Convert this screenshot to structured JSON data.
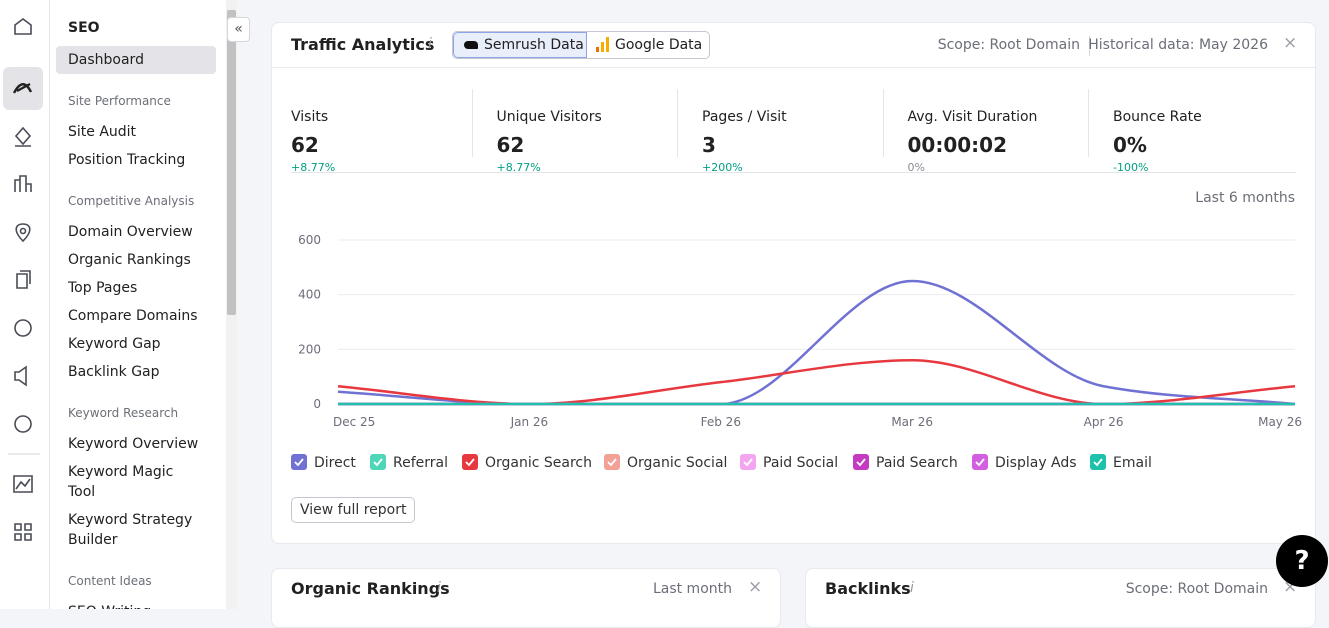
{
  "sidebar": {
    "title": "SEO",
    "top_item": "Dashboard",
    "sections": [
      {
        "heading": "Site Performance",
        "items": [
          "Site Audit",
          "Position Tracking"
        ]
      },
      {
        "heading": "Competitive Analysis",
        "items": [
          "Domain Overview",
          "Organic Rankings",
          "Top Pages",
          "Compare Domains",
          "Keyword Gap",
          "Backlink Gap"
        ]
      },
      {
        "heading": "Keyword Research",
        "items": [
          "Keyword Overview",
          "Keyword Magic Tool",
          "Keyword Strategy Builder"
        ]
      },
      {
        "heading": "Content Ideas",
        "items": [
          "SEO Writing Assistant"
        ]
      }
    ]
  },
  "traffic_card": {
    "title": "Traffic Analytics",
    "tabs": [
      "Semrush Data",
      "Google Data"
    ],
    "scope": "Scope: Root Domain",
    "historical": "Historical data: May 2026",
    "metrics": [
      {
        "label": "Visits",
        "value": "62",
        "change": "+8.77%"
      },
      {
        "label": "Unique Visitors",
        "value": "62",
        "change": "+8.77%"
      },
      {
        "label": "Pages / Visit",
        "value": "3",
        "change": "+200%"
      },
      {
        "label": "Avg. Visit Duration",
        "value": "00:00:02",
        "change": "0%"
      },
      {
        "label": "Bounce Rate",
        "value": "0%",
        "change": "-100%"
      }
    ],
    "period": "Last 6 months",
    "button": "View full report"
  },
  "chart_data": {
    "type": "line",
    "categories": [
      "Dec 25",
      "Jan 26",
      "Feb 26",
      "Mar 26",
      "Apr 26",
      "May 26"
    ],
    "ylim": [
      0,
      600
    ],
    "yticks": [
      0,
      200,
      400,
      600
    ],
    "grid": true,
    "series": [
      {
        "name": "Direct",
        "color": "#7072d3",
        "values": [
          45,
          0,
          0,
          450,
          65,
          0
        ]
      },
      {
        "name": "Referral",
        "color": "#4fd6b8",
        "values": [
          0,
          0,
          0,
          0,
          0,
          0
        ]
      },
      {
        "name": "Organic Search",
        "color": "#e8383f",
        "values": [
          65,
          0,
          80,
          160,
          0,
          65
        ]
      },
      {
        "name": "Organic Social",
        "color": "#f3a197",
        "values": [
          0,
          0,
          0,
          0,
          0,
          0
        ]
      },
      {
        "name": "Paid Social",
        "color": "#f3a6ef",
        "values": [
          0,
          0,
          0,
          0,
          0,
          0
        ]
      },
      {
        "name": "Paid Search",
        "color": "#c43bc2",
        "values": [
          0,
          0,
          0,
          0,
          0,
          0
        ]
      },
      {
        "name": "Display Ads",
        "color": "#d35ee0",
        "values": [
          0,
          0,
          0,
          0,
          0,
          0
        ]
      },
      {
        "name": "Email",
        "color": "#1ec1a9",
        "values": [
          0,
          0,
          0,
          0,
          0,
          0
        ]
      }
    ]
  },
  "organic_card": {
    "title": "Organic Rankings",
    "period": "Last month"
  },
  "backlinks_card": {
    "title": "Backlinks",
    "scope": "Scope: Root Domain"
  },
  "help": "?"
}
